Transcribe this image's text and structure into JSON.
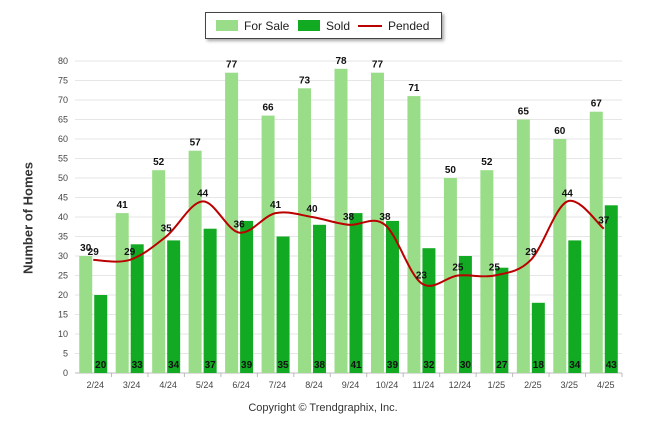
{
  "chart_data": {
    "type": "bar",
    "categories": [
      "2/24",
      "3/24",
      "4/24",
      "5/24",
      "6/24",
      "7/24",
      "8/24",
      "9/24",
      "10/24",
      "11/24",
      "12/24",
      "1/25",
      "2/25",
      "3/25",
      "4/25"
    ],
    "series": [
      {
        "name": "For Sale",
        "type": "bar",
        "color": "#99dd88",
        "values": [
          30,
          41,
          52,
          57,
          77,
          66,
          73,
          78,
          77,
          71,
          50,
          52,
          65,
          60,
          67
        ]
      },
      {
        "name": "Sold",
        "type": "bar",
        "color": "#11aa22",
        "values": [
          20,
          33,
          34,
          37,
          39,
          35,
          38,
          41,
          39,
          32,
          30,
          27,
          18,
          34,
          43
        ]
      },
      {
        "name": "Pended",
        "type": "line",
        "color": "#bb0000",
        "values": [
          29,
          29,
          35,
          44,
          36,
          41,
          40,
          38,
          38,
          23,
          25,
          25,
          29,
          44,
          37
        ]
      }
    ],
    "ylabel": "Number of Homes",
    "ylim": [
      0,
      80
    ],
    "yticks": [
      0,
      5,
      10,
      15,
      20,
      25,
      30,
      35,
      40,
      45,
      50,
      55,
      60,
      65,
      70,
      75,
      80
    ],
    "grid": true,
    "legend_position": "top-center"
  },
  "footer": {
    "copyright": "Copyright © Trendgraphix, Inc."
  }
}
